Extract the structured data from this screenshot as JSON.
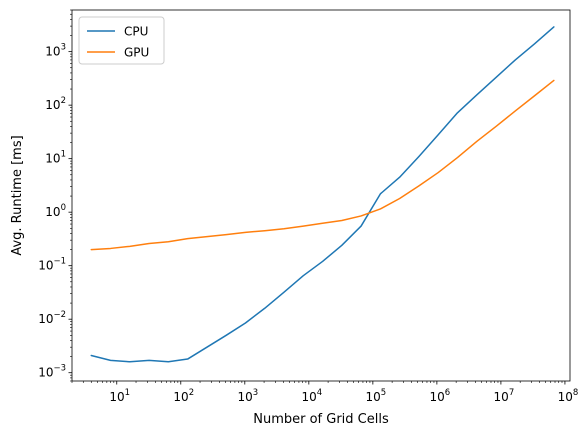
{
  "chart_data": {
    "type": "line",
    "title": "",
    "xlabel": "Number of Grid Cells",
    "ylabel": "Avg. Runtime [ms]",
    "xscale": "log",
    "yscale": "log",
    "xlim": [
      2.0,
      120000000.0
    ],
    "ylim": [
      0.0007,
      6000.0
    ],
    "grid": false,
    "legend_position": "top-left",
    "x_ticks": [
      {
        "value": 10,
        "base": "10",
        "exp": "1"
      },
      {
        "value": 100,
        "base": "10",
        "exp": "2"
      },
      {
        "value": 1000,
        "base": "10",
        "exp": "3"
      },
      {
        "value": 10000,
        "base": "10",
        "exp": "4"
      },
      {
        "value": 100000,
        "base": "10",
        "exp": "5"
      },
      {
        "value": 1000000,
        "base": "10",
        "exp": "6"
      },
      {
        "value": 10000000,
        "base": "10",
        "exp": "7"
      },
      {
        "value": 100000000,
        "base": "10",
        "exp": "8"
      }
    ],
    "y_ticks": [
      {
        "value": 0.001,
        "base": "10",
        "exp": "−3"
      },
      {
        "value": 0.01,
        "base": "10",
        "exp": "−2"
      },
      {
        "value": 0.1,
        "base": "10",
        "exp": "−1"
      },
      {
        "value": 1,
        "base": "10",
        "exp": "0"
      },
      {
        "value": 10,
        "base": "10",
        "exp": "1"
      },
      {
        "value": 100,
        "base": "10",
        "exp": "2"
      },
      {
        "value": 1000,
        "base": "10",
        "exp": "3"
      }
    ],
    "x": [
      4,
      8,
      16,
      32,
      64,
      128,
      256,
      512,
      1024,
      2048,
      4096,
      8192,
      16384,
      32768,
      65536,
      131072,
      262144,
      524288,
      1048576,
      2097152,
      4194304,
      8388608,
      16777216,
      33554432,
      67108864
    ],
    "series": [
      {
        "name": "CPU",
        "color": "#1f77b4",
        "values": [
          0.0021,
          0.0017,
          0.0016,
          0.0017,
          0.0016,
          0.0018,
          0.003,
          0.005,
          0.0085,
          0.016,
          0.032,
          0.065,
          0.12,
          0.24,
          0.55,
          2.2,
          4.5,
          11,
          28,
          72,
          155,
          330,
          700,
          1400,
          2900
        ]
      },
      {
        "name": "GPU",
        "color": "#ff7f0e",
        "values": [
          0.2,
          0.21,
          0.23,
          0.26,
          0.28,
          0.32,
          0.35,
          0.38,
          0.42,
          0.45,
          0.49,
          0.55,
          0.62,
          0.7,
          0.85,
          1.15,
          1.8,
          3.1,
          5.5,
          10.5,
          21,
          40,
          78,
          150,
          290
        ]
      }
    ]
  }
}
